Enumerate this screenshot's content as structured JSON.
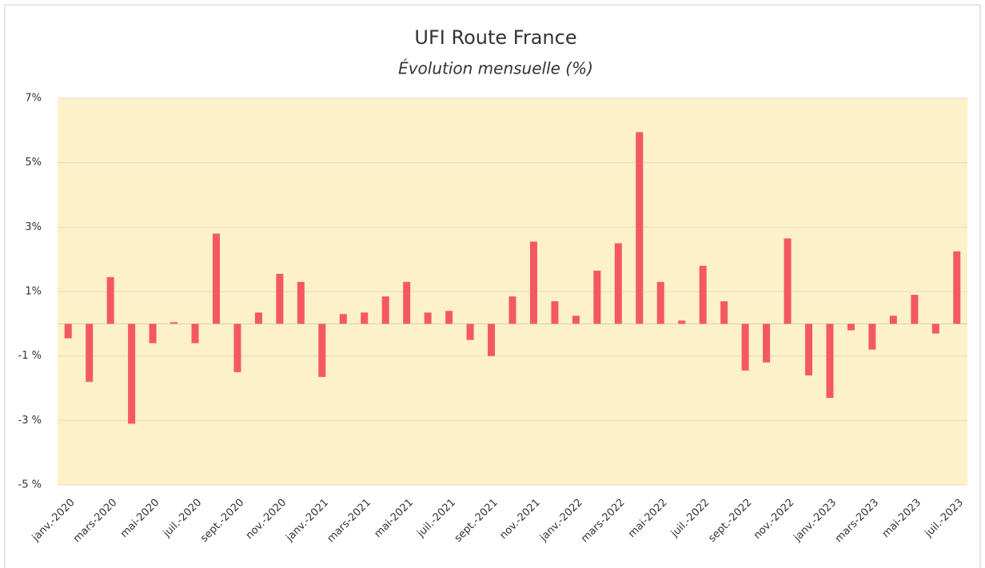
{
  "chart_data": {
    "type": "bar",
    "title": "UFI Route France",
    "subtitle": "Évolution mensuelle (%)",
    "categories": [
      "janv.-2020",
      null,
      "mars-2020",
      null,
      "mai-2020",
      null,
      "juil.-2020",
      null,
      "sept.-2020",
      null,
      "nov.-2020",
      null,
      "janv.-2021",
      null,
      "mars-2021",
      null,
      "mai-2021",
      null,
      "juil.-2021",
      null,
      "sept.-2021",
      null,
      "nov.-2021",
      null,
      "janv.-2022",
      null,
      "mars-2022",
      null,
      "mai-2022",
      null,
      "juil.-2022",
      null,
      "sept.-2022",
      null,
      "nov.-2022",
      null,
      "janv.-2023",
      null,
      "mars-2023",
      null,
      "mai-2023",
      null,
      "juil.-2023"
    ],
    "values": [
      -0.45,
      -1.8,
      1.45,
      -3.1,
      -0.6,
      0.05,
      -0.6,
      2.8,
      -1.5,
      0.35,
      1.55,
      1.3,
      -1.65,
      0.3,
      0.35,
      0.85,
      1.3,
      0.35,
      0.4,
      -0.5,
      -1.0,
      0.85,
      2.55,
      0.7,
      0.25,
      1.65,
      2.5,
      5.95,
      1.3,
      0.1,
      1.8,
      0.7,
      -1.45,
      -1.2,
      2.65,
      -1.6,
      -2.3,
      -0.2,
      -0.8,
      0.25,
      0.9,
      -0.3,
      2.25
    ],
    "color": "#f4595f",
    "plot_background": "#fdf1c9",
    "ylim": [
      -5,
      7
    ],
    "yticks": [
      {
        "value": -5,
        "label": "-5 %"
      },
      {
        "value": -3,
        "label": "-3 %"
      },
      {
        "value": -1,
        "label": "-1 %"
      },
      {
        "value": 1,
        "label": "1%"
      },
      {
        "value": 3,
        "label": "3%"
      },
      {
        "value": 5,
        "label": "5%"
      },
      {
        "value": 7,
        "label": "7%"
      }
    ],
    "grid": true
  }
}
